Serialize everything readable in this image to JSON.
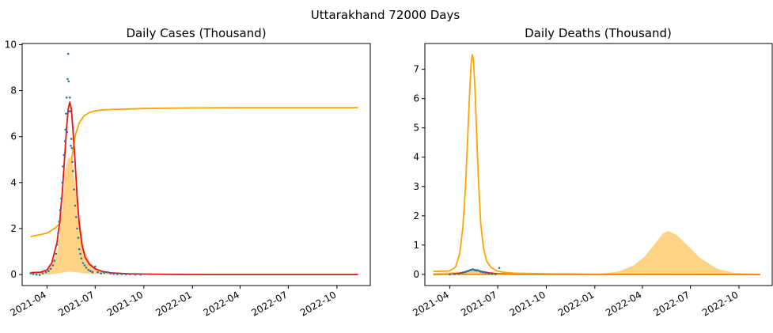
{
  "figure": {
    "suptitle": "Uttarakhand 72000 Days"
  },
  "colors": {
    "orange": "#FFA500",
    "fill": "#FFD17F",
    "red": "#EE1111",
    "dots": "#1F77B4"
  },
  "chart_data": [
    {
      "type": "line",
      "title": "Daily Cases (Thousand)",
      "xlabel": "",
      "ylabel": "",
      "xlim": [
        "2021-02-13",
        "2022-12-03"
      ],
      "ylim": [
        -0.48,
        10.05
      ],
      "x_ticks": [
        "2021-04-01",
        "2021-07-01",
        "2021-10-01",
        "2022-01-01",
        "2022-04-01",
        "2022-07-01",
        "2022-10-01"
      ],
      "x_tick_labels": [
        "2021-04",
        "2021-07",
        "2021-10",
        "2022-01",
        "2022-04",
        "2022-07",
        "2022-10"
      ],
      "y_ticks": [
        0,
        2,
        4,
        6,
        8,
        10
      ],
      "y_tick_labels": [
        "0",
        "2",
        "4",
        "6",
        "8",
        "10"
      ],
      "series": [
        {
          "kind": "line",
          "color": "#FFA500",
          "x": [
            "2021-03-01",
            "2021-04-01",
            "2021-04-15",
            "2021-04-25",
            "2021-05-01",
            "2021-05-05",
            "2021-05-10",
            "2021-05-15",
            "2021-05-20",
            "2021-05-25",
            "2021-06-01",
            "2021-06-10",
            "2021-06-20",
            "2021-07-01",
            "2021-07-15",
            "2021-08-01",
            "2021-09-01",
            "2021-10-01",
            "2022-01-01",
            "2022-04-01",
            "2022-07-01",
            "2022-11-10"
          ],
          "y": [
            1.65,
            1.8,
            2.0,
            2.2,
            2.6,
            3.1,
            3.8,
            4.6,
            5.4,
            6.1,
            6.6,
            6.9,
            7.05,
            7.12,
            7.16,
            7.18,
            7.2,
            7.22,
            7.25,
            7.26,
            7.26,
            7.26
          ]
        },
        {
          "kind": "band",
          "color": "#FFD17F",
          "x": [
            "2021-03-01",
            "2021-04-01",
            "2021-04-20",
            "2021-04-25",
            "2021-05-01",
            "2021-05-05",
            "2021-05-10",
            "2021-05-15",
            "2021-05-20",
            "2021-05-25",
            "2021-06-01",
            "2021-06-10",
            "2021-06-20",
            "2021-07-01",
            "2021-07-15",
            "2021-08-01",
            "2021-09-01",
            "2021-10-01",
            "2022-11-10"
          ],
          "upper": [
            0.08,
            0.15,
            0.9,
            1.8,
            3.2,
            4.5,
            5.0,
            5.1,
            4.8,
            3.8,
            2.5,
            1.1,
            0.55,
            0.3,
            0.15,
            0.06,
            0.03,
            0.02,
            0.0
          ],
          "lower": [
            0.0,
            0.0,
            0.04,
            0.06,
            0.08,
            0.1,
            0.12,
            0.12,
            0.11,
            0.1,
            0.08,
            0.05,
            0.03,
            0.02,
            0.01,
            0.0,
            0.0,
            0.0,
            0.0
          ]
        },
        {
          "kind": "line",
          "color": "#EE1111",
          "x": [
            "2021-03-01",
            "2021-03-20",
            "2021-04-01",
            "2021-04-10",
            "2021-04-20",
            "2021-04-25",
            "2021-04-30",
            "2021-05-04",
            "2021-05-08",
            "2021-05-11",
            "2021-05-14",
            "2021-05-17",
            "2021-05-20",
            "2021-05-24",
            "2021-05-28",
            "2021-06-01",
            "2021-06-06",
            "2021-06-12",
            "2021-06-20",
            "2021-07-01",
            "2021-07-15",
            "2021-08-01",
            "2021-09-01",
            "2021-10-01",
            "2022-01-01",
            "2022-11-10"
          ],
          "y": [
            0.08,
            0.1,
            0.2,
            0.5,
            1.4,
            2.3,
            3.6,
            5.0,
            6.4,
            7.2,
            7.5,
            7.2,
            6.3,
            4.9,
            3.4,
            2.2,
            1.3,
            0.75,
            0.45,
            0.25,
            0.13,
            0.07,
            0.03,
            0.02,
            0.0,
            0.0
          ]
        },
        {
          "kind": "scatter",
          "color": "#1F77B4",
          "x": [
            "2021-03-01",
            "2021-03-06",
            "2021-03-12",
            "2021-03-18",
            "2021-03-24",
            "2021-03-30",
            "2021-04-04",
            "2021-04-08",
            "2021-04-12",
            "2021-04-15",
            "2021-04-18",
            "2021-04-20",
            "2021-04-22",
            "2021-04-24",
            "2021-04-26",
            "2021-04-28",
            "2021-04-30",
            "2021-05-01",
            "2021-05-03",
            "2021-05-05",
            "2021-05-06",
            "2021-05-07",
            "2021-05-08",
            "2021-05-09",
            "2021-05-10",
            "2021-05-11",
            "2021-05-12",
            "2021-05-13",
            "2021-05-14",
            "2021-05-15",
            "2021-05-16",
            "2021-05-17",
            "2021-05-18",
            "2021-05-19",
            "2021-05-20",
            "2021-05-22",
            "2021-05-24",
            "2021-05-26",
            "2021-05-28",
            "2021-05-30",
            "2021-06-01",
            "2021-06-03",
            "2021-06-05",
            "2021-06-08",
            "2021-06-11",
            "2021-06-14",
            "2021-06-18",
            "2021-06-22",
            "2021-06-26",
            "2021-07-01",
            "2021-07-06",
            "2021-07-12",
            "2021-07-18",
            "2021-07-24",
            "2021-07-30",
            "2021-08-05",
            "2021-08-12",
            "2021-08-20",
            "2021-08-28",
            "2021-09-05",
            "2021-09-15",
            "2021-09-25"
          ],
          "y": [
            0.05,
            0.02,
            0.0,
            -0.02,
            0.05,
            0.1,
            0.15,
            0.25,
            0.4,
            0.6,
            0.9,
            1.3,
            1.8,
            2.3,
            2.8,
            3.3,
            4.0,
            4.7,
            5.2,
            5.8,
            6.3,
            7.0,
            7.7,
            6.2,
            8.5,
            9.6,
            8.4,
            7.1,
            7.7,
            7.1,
            5.6,
            5.9,
            5.5,
            4.9,
            4.5,
            3.7,
            3.0,
            2.5,
            2.0,
            1.6,
            1.1,
            0.9,
            0.7,
            0.5,
            0.4,
            0.3,
            0.2,
            0.15,
            0.1,
            0.35,
            0.1,
            0.05,
            0.08,
            0.1,
            0.05,
            0.03,
            0.02,
            0.02,
            0.01,
            0.01,
            0.0,
            0.0
          ]
        }
      ]
    },
    {
      "type": "line",
      "title": "Daily Deaths (Thousand)",
      "xlabel": "",
      "ylabel": "",
      "xlim": [
        "2021-02-13",
        "2022-12-03"
      ],
      "ylim": [
        -0.38,
        7.88
      ],
      "x_ticks": [
        "2021-04-01",
        "2021-07-01",
        "2021-10-01",
        "2022-01-01",
        "2022-04-01",
        "2022-07-01",
        "2022-10-01"
      ],
      "x_tick_labels": [
        "2021-04",
        "2021-07",
        "2021-10",
        "2022-01",
        "2022-04",
        "2022-07",
        "2022-10"
      ],
      "y_ticks": [
        0,
        1,
        2,
        3,
        4,
        5,
        6,
        7
      ],
      "y_tick_labels": [
        "0",
        "1",
        "2",
        "3",
        "4",
        "5",
        "6",
        "7"
      ],
      "series": [
        {
          "kind": "band",
          "color": "#FFD17F",
          "x": [
            "2021-03-01",
            "2021-05-01",
            "2021-05-15",
            "2021-06-01",
            "2021-07-01",
            "2021-10-01",
            "2021-12-01",
            "2022-01-15",
            "2022-02-15",
            "2022-03-15",
            "2022-04-05",
            "2022-04-25",
            "2022-05-10",
            "2022-05-20",
            "2022-06-05",
            "2022-06-25",
            "2022-07-20",
            "2022-08-20",
            "2022-09-20",
            "2022-11-10"
          ],
          "upper": [
            0.05,
            0.1,
            0.15,
            0.12,
            0.05,
            0.02,
            0.01,
            0.03,
            0.1,
            0.3,
            0.6,
            1.05,
            1.4,
            1.48,
            1.35,
            1.0,
            0.55,
            0.2,
            0.06,
            0.02
          ],
          "lower": [
            0,
            0,
            0,
            0,
            0,
            0,
            0,
            0,
            0,
            0,
            0,
            0,
            0,
            0,
            0,
            0,
            0,
            0,
            0,
            0
          ]
        },
        {
          "kind": "line",
          "color": "#FFA500",
          "x": [
            "2021-03-01",
            "2021-04-01",
            "2021-04-12",
            "2021-04-20",
            "2021-04-26",
            "2021-05-01",
            "2021-05-05",
            "2021-05-09",
            "2021-05-12",
            "2021-05-14",
            "2021-05-16",
            "2021-05-19",
            "2021-05-22",
            "2021-05-26",
            "2021-05-30",
            "2021-06-04",
            "2021-06-10",
            "2021-06-18",
            "2021-06-28",
            "2021-07-10",
            "2021-08-01",
            "2021-10-01",
            "2022-01-01",
            "2022-11-10"
          ],
          "y": [
            0.1,
            0.12,
            0.25,
            0.7,
            1.6,
            3.0,
            4.6,
            6.3,
            7.25,
            7.5,
            7.3,
            6.3,
            4.8,
            3.0,
            1.7,
            0.9,
            0.45,
            0.25,
            0.13,
            0.08,
            0.04,
            0.02,
            0.01,
            0.0
          ]
        },
        {
          "kind": "line",
          "color": "#EE1111",
          "x": [
            "2021-03-01",
            "2021-04-01",
            "2021-04-20",
            "2021-05-01",
            "2021-05-10",
            "2021-05-16",
            "2021-05-22",
            "2021-06-01",
            "2021-06-15",
            "2021-07-01",
            "2021-08-01",
            "2022-11-10"
          ],
          "y": [
            0.0,
            0.01,
            0.04,
            0.09,
            0.14,
            0.17,
            0.15,
            0.1,
            0.05,
            0.02,
            0.0,
            0.0
          ]
        },
        {
          "kind": "line",
          "color": "#FF8C00",
          "x": [
            "2021-03-01",
            "2022-11-10"
          ],
          "y": [
            0.0,
            0.0
          ]
        },
        {
          "kind": "scatter",
          "color": "#1F77B4",
          "x": [
            "2021-04-01",
            "2021-04-10",
            "2021-04-18",
            "2021-04-25",
            "2021-04-30",
            "2021-05-03",
            "2021-05-06",
            "2021-05-09",
            "2021-05-12",
            "2021-05-15",
            "2021-05-18",
            "2021-05-21",
            "2021-05-24",
            "2021-05-27",
            "2021-05-30",
            "2021-06-03",
            "2021-06-08",
            "2021-06-14",
            "2021-06-20",
            "2021-06-27",
            "2021-07-04"
          ],
          "y": [
            0.0,
            0.01,
            0.02,
            0.05,
            0.08,
            0.1,
            0.12,
            0.14,
            0.16,
            0.17,
            0.15,
            0.13,
            0.14,
            0.12,
            0.09,
            0.07,
            0.05,
            0.03,
            0.02,
            0.01,
            0.22
          ]
        }
      ]
    }
  ]
}
